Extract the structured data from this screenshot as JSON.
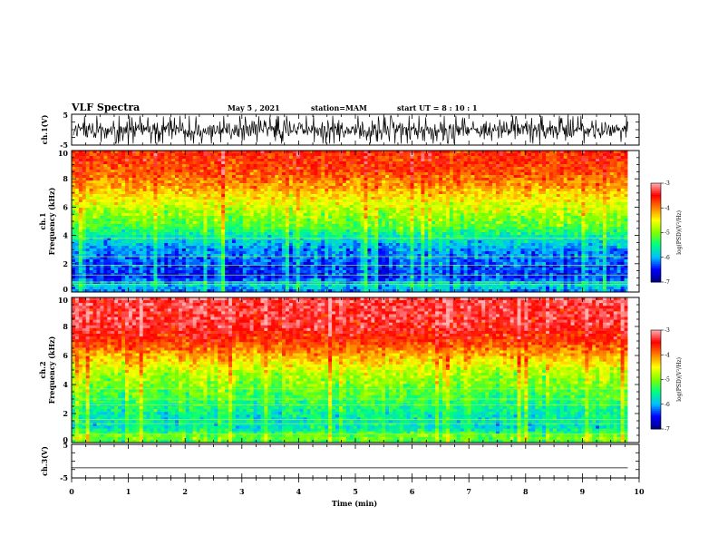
{
  "chart_data": {
    "type": "heatmap",
    "title": "VLF Spectra",
    "header": {
      "date": "May 5  , 2021",
      "station": "station=MAM",
      "start": "start  UT  =   8  : 10 : 1"
    },
    "xlabel": "Time  (min)",
    "xlim": [
      0,
      10
    ],
    "x_ticks": [
      "0",
      "1",
      "2",
      "3",
      "4",
      "5",
      "6",
      "7",
      "8",
      "9",
      "10"
    ],
    "data_end_min": 9.8,
    "panels": [
      {
        "type": "line",
        "ylabel": "ch.1(V)",
        "ylim": [
          -5,
          5
        ],
        "y_ticks": [
          "5",
          "-5"
        ],
        "waveform": "noise",
        "amplitude_range": [
          -4.5,
          4.5
        ]
      },
      {
        "type": "heatmap",
        "ylabel_line1": "ch.1",
        "ylabel_line2": "Frequency  (kHz)",
        "ylim": [
          0,
          10
        ],
        "y_ticks": [
          "0",
          "2",
          "4",
          "6",
          "8",
          "10"
        ],
        "z_unit": "log(PSD)(V²/Hz)",
        "zlim": [
          -7,
          -3
        ],
        "z_ticks": [
          "-3",
          "-4",
          "-5",
          "-6",
          "-7"
        ],
        "profile_by_frequency_khz": [
          {
            "f": 0.0,
            "z": -6.2
          },
          {
            "f": 0.5,
            "z": -5.8
          },
          {
            "f": 1.0,
            "z": -6.4
          },
          {
            "f": 2.0,
            "z": -6.3
          },
          {
            "f": 3.0,
            "z": -6.1
          },
          {
            "f": 4.0,
            "z": -5.6
          },
          {
            "f": 4.6,
            "z": -5.2
          },
          {
            "f": 5.5,
            "z": -4.9
          },
          {
            "f": 6.5,
            "z": -4.5
          },
          {
            "f": 7.5,
            "z": -4.1
          },
          {
            "f": 8.5,
            "z": -3.8
          },
          {
            "f": 10.0,
            "z": -3.6
          }
        ],
        "lines_khz": [
          0.55,
          0.7,
          1.2,
          1.9,
          2.5,
          3.8
        ]
      },
      {
        "type": "heatmap",
        "ylabel_line1": "ch.2",
        "ylabel_line2": "Frequency  (kHz)",
        "ylim": [
          0,
          10
        ],
        "y_ticks": [
          "0",
          "2",
          "4",
          "6",
          "8",
          "10"
        ],
        "z_unit": "log(PSD)(V²/Hz)",
        "zlim": [
          -7,
          -3
        ],
        "z_ticks": [
          "-3",
          "-4",
          "-5",
          "-6",
          "-7"
        ],
        "profile_by_frequency_khz": [
          {
            "f": 0.0,
            "z": -5.3
          },
          {
            "f": 0.4,
            "z": -5.0
          },
          {
            "f": 1.0,
            "z": -5.7
          },
          {
            "f": 2.0,
            "z": -5.6
          },
          {
            "f": 3.0,
            "z": -5.3
          },
          {
            "f": 4.0,
            "z": -5.0
          },
          {
            "f": 5.0,
            "z": -4.7
          },
          {
            "f": 6.0,
            "z": -4.2
          },
          {
            "f": 7.0,
            "z": -3.7
          },
          {
            "f": 8.0,
            "z": -3.4
          },
          {
            "f": 10.0,
            "z": -3.3
          }
        ],
        "lines_khz": [
          0.6,
          1.3,
          1.6,
          2.6,
          3.0,
          3.7
        ]
      },
      {
        "type": "line",
        "ylabel": "ch.3(V)",
        "ylim": [
          -5,
          5
        ],
        "y_ticks": [
          "5",
          "-5"
        ],
        "waveform": "flat",
        "value": -2
      }
    ],
    "colors": {
      "axes": "#000000",
      "colormap": [
        "#00007f",
        "#0000ff",
        "#00bfff",
        "#00ff7f",
        "#7fff00",
        "#ffff00",
        "#ff7f00",
        "#ff0000",
        "#ffb0b0"
      ]
    }
  }
}
